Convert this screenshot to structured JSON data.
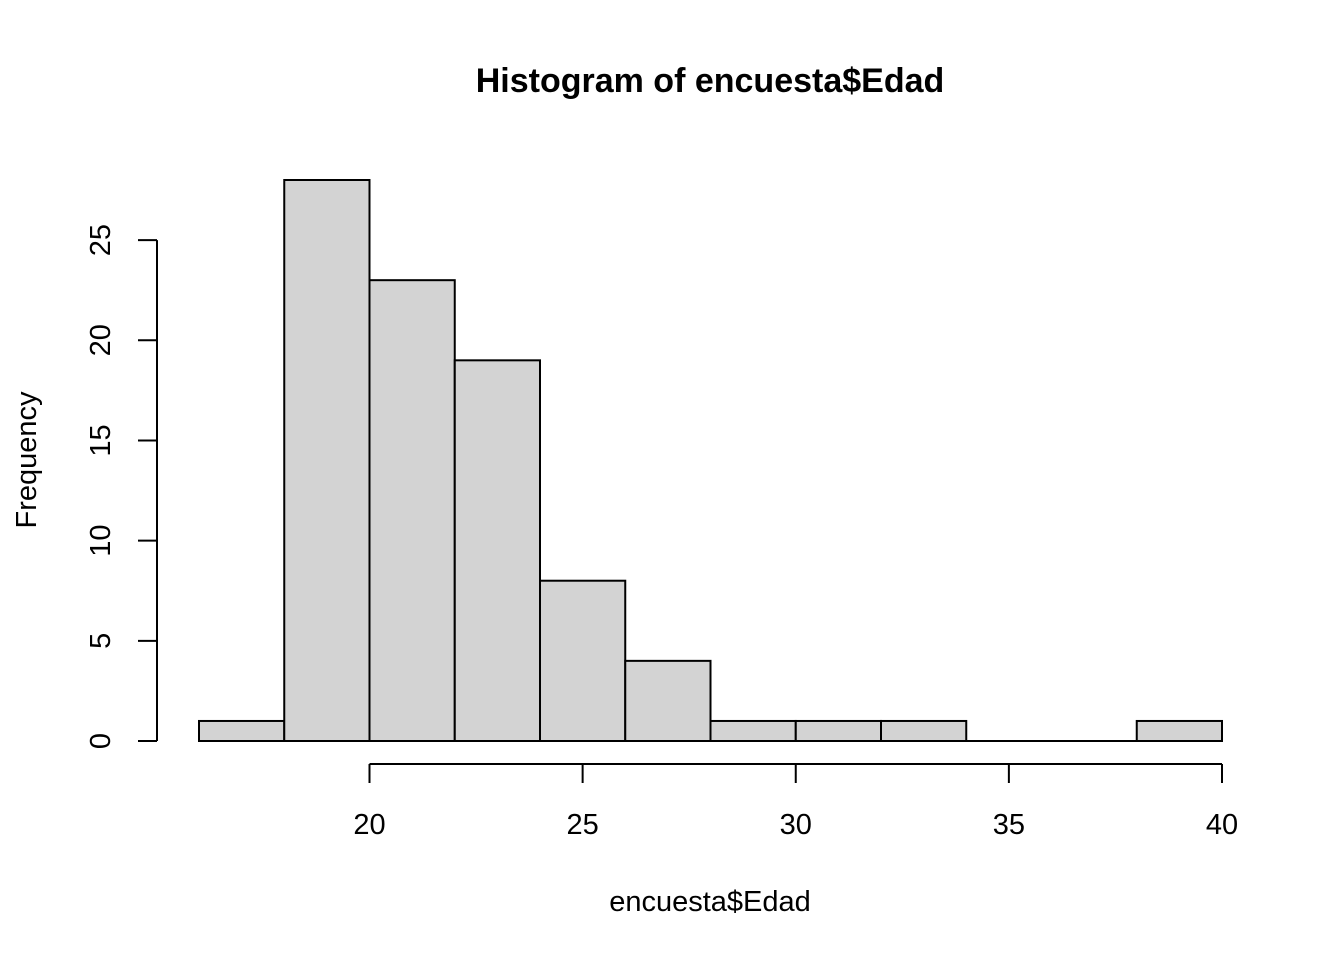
{
  "chart_data": {
    "type": "bar",
    "title": "Histogram of encuesta$Edad",
    "xlabel": "encuesta$Edad",
    "ylabel": "Frequency",
    "bins": [
      {
        "start": 16,
        "end": 18,
        "count": 1
      },
      {
        "start": 18,
        "end": 20,
        "count": 28
      },
      {
        "start": 20,
        "end": 22,
        "count": 23
      },
      {
        "start": 22,
        "end": 24,
        "count": 19
      },
      {
        "start": 24,
        "end": 26,
        "count": 8
      },
      {
        "start": 26,
        "end": 28,
        "count": 4
      },
      {
        "start": 28,
        "end": 30,
        "count": 1
      },
      {
        "start": 30,
        "end": 32,
        "count": 1
      },
      {
        "start": 32,
        "end": 34,
        "count": 1
      },
      {
        "start": 34,
        "end": 36,
        "count": 0
      },
      {
        "start": 36,
        "end": 38,
        "count": 0
      },
      {
        "start": 38,
        "end": 40,
        "count": 1
      }
    ],
    "xticks": [
      20,
      25,
      30,
      35,
      40
    ],
    "yticks": [
      0,
      5,
      10,
      15,
      20,
      25
    ],
    "xlim": [
      16,
      40
    ],
    "ylim": [
      0,
      28
    ],
    "grid": false,
    "bar_color": "#d3d3d3",
    "border_color": "#000000"
  }
}
